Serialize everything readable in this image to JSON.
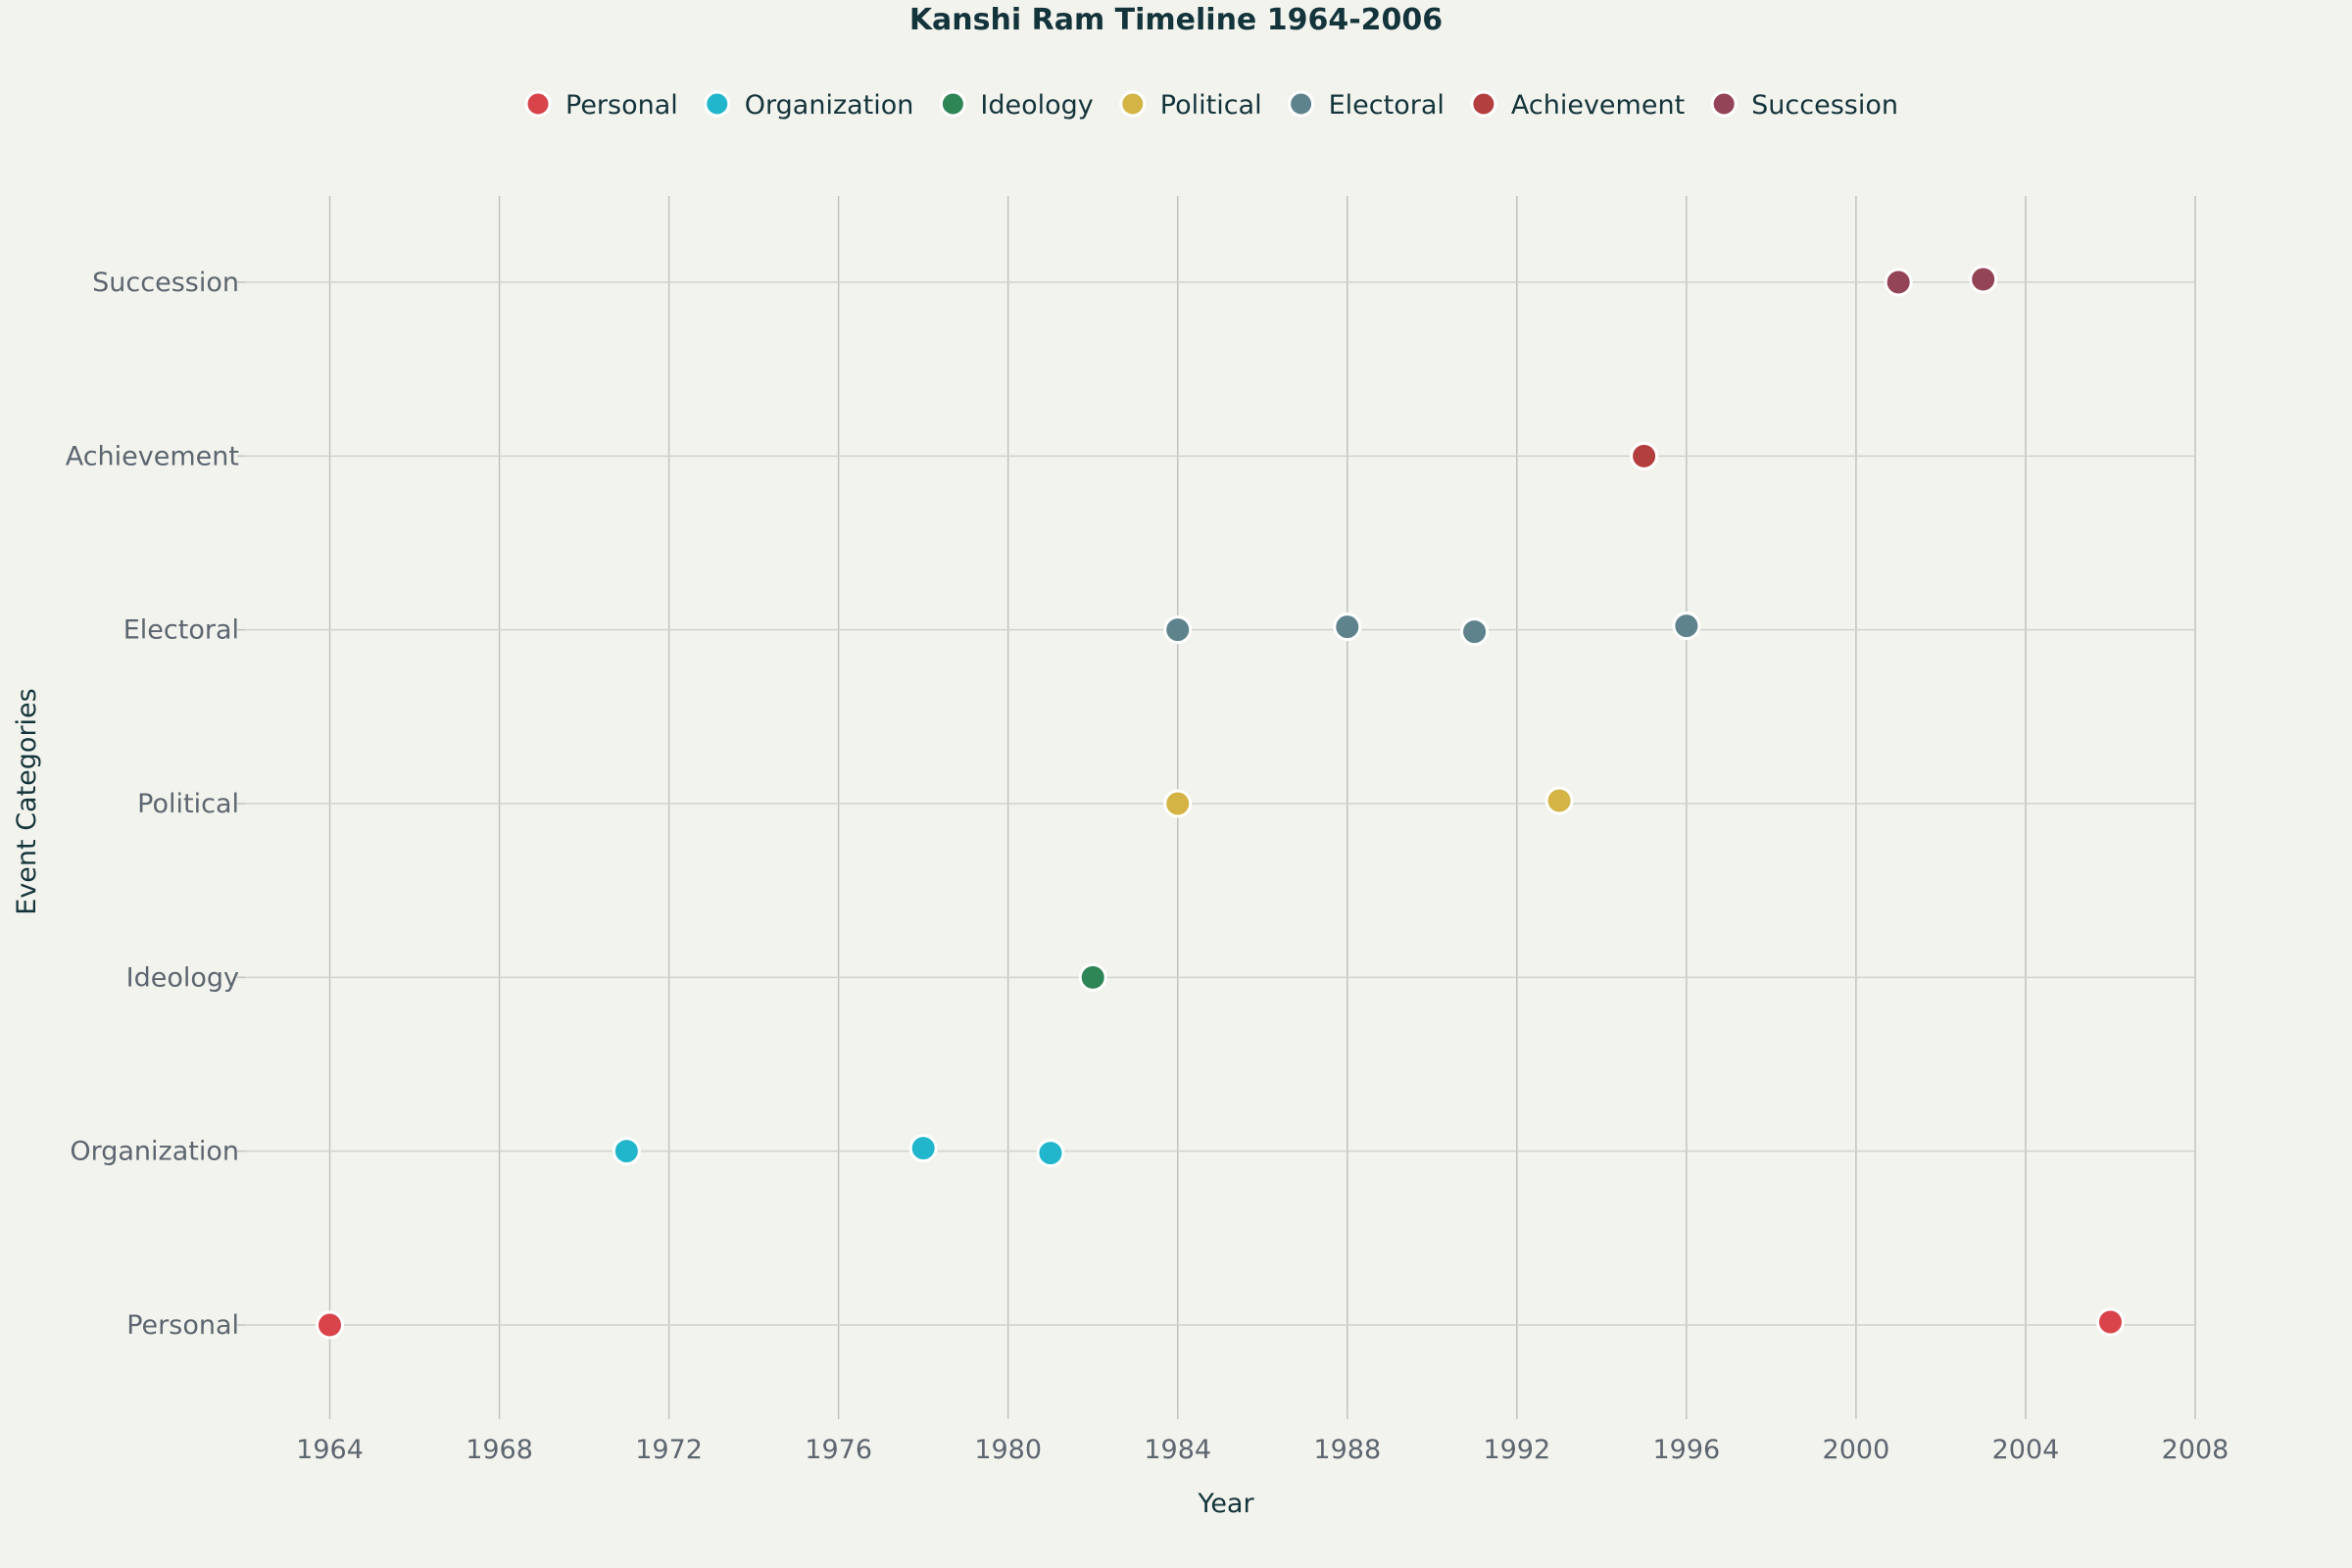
{
  "chart_data": {
    "type": "scatter",
    "title": "Kanshi Ram Timeline 1964-2006",
    "xlabel": "Year",
    "ylabel": "Event Categories",
    "xlim": [
      1962,
      2008
    ],
    "x_ticks": [
      "1964",
      "1968",
      "1972",
      "1976",
      "1980",
      "1984",
      "1988",
      "1992",
      "1996",
      "2000",
      "2004",
      "2008"
    ],
    "categories": [
      "Personal",
      "Organization",
      "Ideology",
      "Political",
      "Electoral",
      "Achievement",
      "Succession"
    ],
    "grid": true,
    "legend_position": "top",
    "series": [
      {
        "name": "Personal",
        "color": "#d9434a",
        "points": [
          {
            "x": 1964,
            "y": "Personal"
          },
          {
            "x": 2006,
            "y": "Personal"
          }
        ]
      },
      {
        "name": "Organization",
        "color": "#21b6cc",
        "points": [
          {
            "x": 1971,
            "y": "Organization"
          },
          {
            "x": 1978,
            "y": "Organization"
          },
          {
            "x": 1981,
            "y": "Organization"
          }
        ]
      },
      {
        "name": "Ideology",
        "color": "#2e8555",
        "points": [
          {
            "x": 1982,
            "y": "Ideology"
          }
        ]
      },
      {
        "name": "Political",
        "color": "#d3b445",
        "points": [
          {
            "x": 1984,
            "y": "Political"
          },
          {
            "x": 1993,
            "y": "Political"
          }
        ]
      },
      {
        "name": "Electoral",
        "color": "#5e838c",
        "points": [
          {
            "x": 1984,
            "y": "Electoral"
          },
          {
            "x": 1988,
            "y": "Electoral"
          },
          {
            "x": 1991,
            "y": "Electoral"
          },
          {
            "x": 1996,
            "y": "Electoral"
          }
        ]
      },
      {
        "name": "Achievement",
        "color": "#b3403f",
        "points": [
          {
            "x": 1995,
            "y": "Achievement"
          }
        ]
      },
      {
        "name": "Succession",
        "color": "#944457",
        "points": [
          {
            "x": 2001,
            "y": "Succession"
          },
          {
            "x": 2003,
            "y": "Succession"
          }
        ]
      }
    ]
  }
}
